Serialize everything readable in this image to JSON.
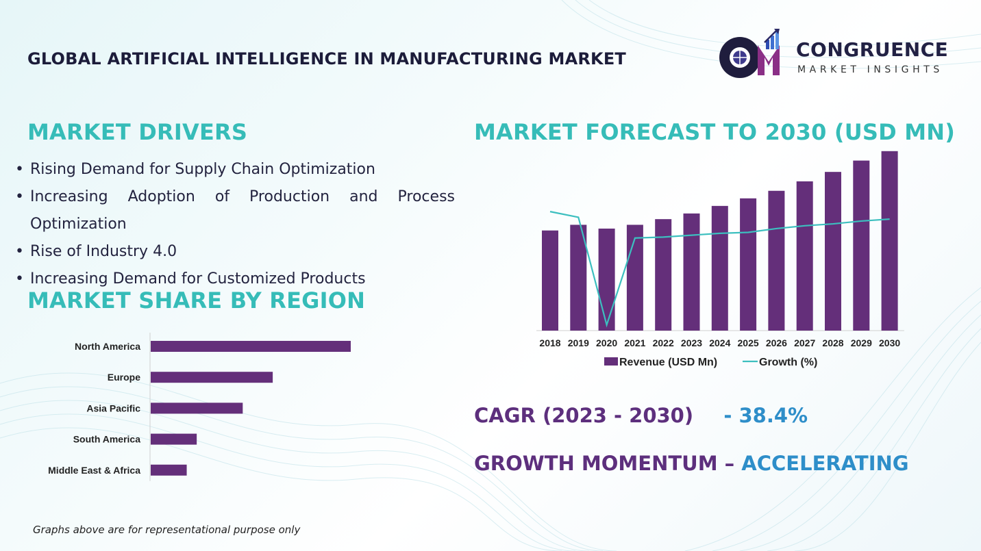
{
  "header": {
    "title": "GLOBAL ARTIFICIAL INTELLIGENCE IN MANUFACTURING MARKET"
  },
  "logo": {
    "monogram": "CM",
    "name": "CONGRUENCE",
    "tagline": "MARKET INSIGHTS"
  },
  "drivers": {
    "heading": "MARKET DRIVERS",
    "items": [
      "Rising Demand for Supply Chain Optimization",
      "Increasing Adoption of Production and Process Optimization",
      "Rise of Industry 4.0",
      "Increasing Demand for Customized Products"
    ]
  },
  "region_heading": "MARKET SHARE BY REGION",
  "forecast_heading": "MARKET FORECAST TO 2030 (USD MN)",
  "cagr": {
    "label": "CAGR (2023 - 2030)",
    "value": "- 38.4%"
  },
  "momentum": {
    "label": "GROWTH MOMENTUM –",
    "value": "ACCELERATING"
  },
  "footnote": "Graphs above are for representational purpose only",
  "colors": {
    "bar": "#642f7a",
    "line": "#3cbfbf",
    "heading": "#36bcb8",
    "accent_purple": "#5d2f7d",
    "accent_blue": "#2e8ec9"
  },
  "chart_data": [
    {
      "type": "bar",
      "orientation": "horizontal",
      "categories": [
        "North America",
        "Europe",
        "Asia Pacific",
        "South America",
        "Middle East & Africa"
      ],
      "values": [
        100,
        61,
        46,
        23,
        18
      ],
      "title": "",
      "xlabel": "",
      "ylabel": "",
      "axis_ticks": false,
      "grid": false
    },
    {
      "type": "bar",
      "categories": [
        "2018",
        "2019",
        "2020",
        "2021",
        "2022",
        "2023",
        "2024",
        "2025",
        "2026",
        "2027",
        "2028",
        "2029",
        "2030"
      ],
      "series": [
        {
          "name": "Revenue (USD Mn)",
          "type": "bar",
          "values": [
            53,
            56,
            54,
            56,
            59,
            62,
            66,
            70,
            74,
            79,
            84,
            90,
            95
          ]
        },
        {
          "name": "Growth (%)",
          "type": "line",
          "values": [
            63,
            60,
            3,
            49,
            49.5,
            50.5,
            51.5,
            52,
            54,
            55.5,
            56.5,
            58,
            59
          ]
        }
      ],
      "ylim": [
        0,
        100
      ],
      "legend": "bottom",
      "grid": false,
      "value_axis_labels": false
    }
  ]
}
